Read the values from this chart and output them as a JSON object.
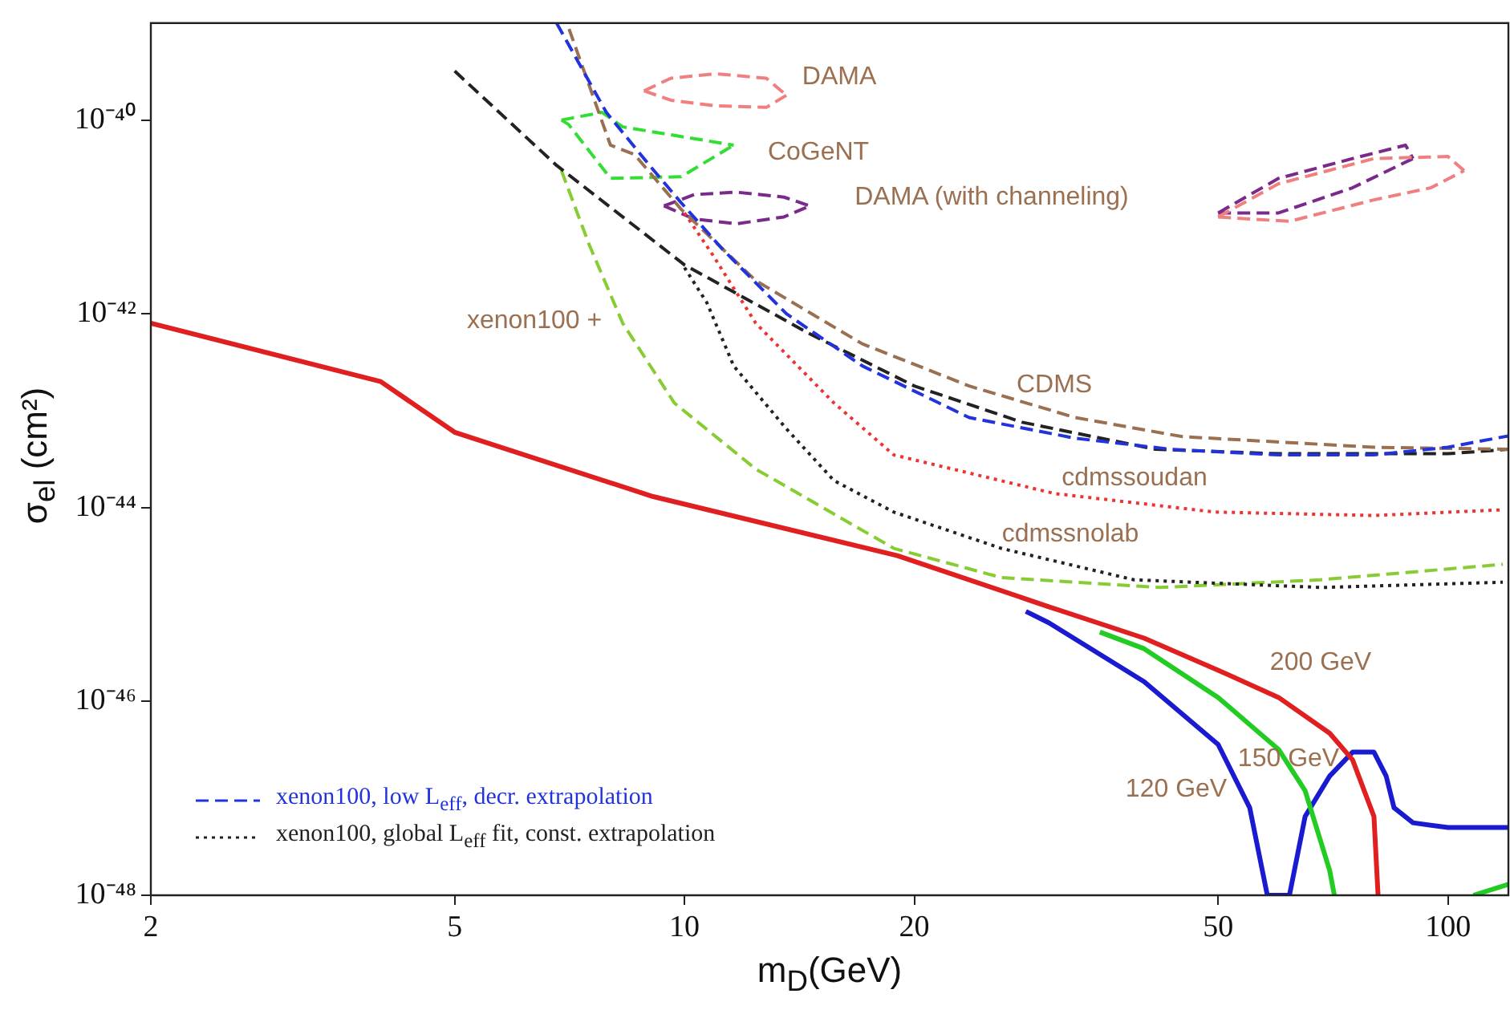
{
  "chart_data": {
    "type": "line",
    "xlabel": "m$_{D}$(GeV)",
    "ylabel": "σ$_{el}$ (cm²)",
    "log": "xy",
    "grid": false,
    "legend": "bottom left",
    "xlim": [
      2,
      120
    ],
    "xticks": [
      2,
      5,
      10,
      20,
      50,
      100
    ],
    "ylim": [
      1e-48,
      1e-39
    ],
    "yticks": [
      {
        "value": 1e-48,
        "label": "10⁻⁴⁸"
      },
      {
        "value": 1e-46,
        "label": "10⁻⁴⁶"
      },
      {
        "value": 1e-44,
        "label": "10⁻⁴⁴"
      },
      {
        "value": 1e-42,
        "label": "10⁻⁴²"
      },
      {
        "value": 1e-40,
        "label": "10⁻⁴⁰"
      }
    ],
    "series": [
      {
        "color": "#e02020",
        "line_style": "solid",
        "x": [
          2,
          4,
          5,
          9.1,
          19,
          30,
          40,
          50,
          60,
          70,
          75,
          80,
          81
        ],
        "values": [
          8e-43,
          2e-43,
          6e-44,
          1.3e-44,
          3.2e-45,
          9.5e-46,
          4.5e-46,
          2.1e-46,
          1.1e-46,
          4.7e-47,
          2.5e-47,
          6.5e-48,
          1e-48
        ]
      },
      {
        "color": "#22cc22",
        "line_style": "solid",
        "x": [
          35,
          40,
          50,
          60,
          65,
          70,
          71,
          90,
          108,
          120
        ],
        "values": [
          5.2e-46,
          3.5e-46,
          1.1e-46,
          3.2e-47,
          1.2e-47,
          1.8e-48,
          1e-48,
          null,
          1e-48,
          1.3e-48
        ]
      },
      {
        "color": "#1a1ad0",
        "line_style": "solid",
        "x": [
          28,
          30,
          40,
          50,
          55,
          58,
          62,
          65,
          70,
          75,
          80,
          83,
          85,
          90,
          100,
          120
        ],
        "values": [
          8.5e-46,
          6.5e-46,
          1.6e-46,
          3.6e-47,
          8e-48,
          1e-48,
          1e-48,
          6.5e-48,
          1.7e-47,
          3e-47,
          3e-47,
          1.7e-47,
          8e-48,
          5.6e-48,
          5e-48,
          5e-48
        ]
      },
      {
        "name": "xenon100, low L$_{eff}$, decr. extrapolation",
        "color": "#2233dd",
        "line_style": "dashed",
        "x": [
          6.8,
          7.9,
          9,
          9.9,
          11.2,
          13.6,
          17.1,
          23.6,
          32.5,
          43.4,
          60,
          80,
          100,
          120
        ],
        "values": [
          1e-39,
          1.2e-40,
          3.4e-41,
          1.4e-41,
          4.7e-42,
          1e-42,
          2.9e-43,
          8.5e-44,
          5.2e-44,
          4e-44,
          3.5e-44,
          3.5e-44,
          4.2e-44,
          5.5e-44
        ]
      },
      {
        "color": "#9a7050",
        "line_style": "dashed",
        "x": [
          7.06,
          8,
          8.6,
          9.9,
          12.4,
          17.1,
          23.6,
          32.5,
          44.9,
          80,
          120
        ],
        "values": [
          8.7e-40,
          5.5e-41,
          4.4e-41,
          1.2e-41,
          2.2e-42,
          4.9e-43,
          1.8e-43,
          8.5e-44,
          5.4e-44,
          4.2e-44,
          4e-44
        ]
      },
      {
        "color": "#222222",
        "line_style": "dashed",
        "x": [
          5,
          6.8,
          10,
          14.6,
          20,
          27.7,
          41.4,
          60,
          100,
          120
        ],
        "values": [
          3.2e-40,
          3.4e-41,
          3.2e-42,
          6.2e-43,
          1.8e-43,
          7.6e-44,
          4e-44,
          3.6e-44,
          3.6e-44,
          4e-44
        ]
      },
      {
        "name": "xenon100, global L$_{eff}$ fit, const. extrapolation",
        "color": "#222222",
        "line_style": "dotted",
        "x": [
          10,
          10.7,
          11.6,
          13.6,
          15.7,
          18.8,
          26,
          38.8,
          68.4,
          118
        ],
        "values": [
          3e-42,
          1.3e-42,
          2.9e-43,
          6.5e-44,
          1.9e-44,
          9e-45,
          3.8e-45,
          1.8e-45,
          1.5e-45,
          1.7e-45
        ]
      },
      {
        "color": "#ee3333",
        "line_style": "dotted",
        "x": [
          10,
          10.9,
          12.4,
          15.7,
          18.8,
          30.5,
          49.5,
          80,
          118
        ],
        "values": [
          1.1e-41,
          4e-42,
          8e-43,
          1.2e-43,
          3.5e-44,
          1.4e-44,
          9e-45,
          8.3e-45,
          9.5e-45
        ]
      },
      {
        "color": "#88cc33",
        "line_style": "dashed",
        "x": [
          6.9,
          7.5,
          8.3,
          9.7,
          12.4,
          18.8,
          26,
          42,
          68,
          118
        ],
        "values": [
          3e-41,
          5.2e-42,
          8e-43,
          1.2e-43,
          2.5e-44,
          3.8e-45,
          1.9e-45,
          1.5e-45,
          1.8e-45,
          2.6e-45
        ]
      },
      {
        "color": "#f08080",
        "line_style": "dashed",
        "x": [
          8.85,
          9.6,
          11,
          12.8,
          13.6
        ],
        "values": [
          2e-40,
          2.7e-40,
          3e-40,
          2.7e-40,
          1.8e-40
        ]
      },
      {
        "color": "#f08080",
        "line_style": "dashed",
        "x": [
          8.85,
          9.6,
          11,
          12.8,
          13.6
        ],
        "values": [
          2e-40,
          1.6e-40,
          1.4e-40,
          1.35e-40,
          1.8e-40
        ]
      },
      {
        "color": "#f08080",
        "line_style": "dashed",
        "x": [
          50,
          60,
          80,
          100,
          105
        ],
        "values": [
          1e-41,
          2.2e-41,
          4e-41,
          4.2e-41,
          3e-41
        ]
      },
      {
        "color": "#f08080",
        "line_style": "dashed",
        "x": [
          50,
          62,
          80,
          95,
          105
        ],
        "values": [
          1e-41,
          9e-42,
          1.5e-41,
          2e-41,
          3e-41
        ]
      },
      {
        "color": "#7a2a8a",
        "line_style": "dashed",
        "x": [
          9.4,
          10.3,
          11.7,
          13.5,
          14.6
        ],
        "values": [
          1.3e-41,
          1.7e-41,
          1.8e-41,
          1.6e-41,
          1.3e-41
        ]
      },
      {
        "color": "#7a2a8a",
        "line_style": "dashed",
        "x": [
          9.4,
          10.3,
          11.7,
          13.5,
          14.6
        ],
        "values": [
          1.3e-41,
          9.5e-42,
          8.5e-42,
          1e-41,
          1.3e-41
        ]
      },
      {
        "color": "#7a2a8a",
        "line_style": "dashed",
        "x": [
          50,
          60,
          75,
          88,
          90
        ],
        "values": [
          1.1e-41,
          2.5e-41,
          4e-41,
          5.5e-41,
          4e-41
        ]
      },
      {
        "color": "#7a2a8a",
        "line_style": "dashed",
        "x": [
          50,
          60,
          75,
          90
        ],
        "values": [
          1.1e-41,
          1.1e-41,
          2e-41,
          4e-41
        ]
      },
      {
        "color": "#33dd33",
        "line_style": "dashed",
        "x": [
          6.9,
          7.8,
          8.3,
          11.6
        ],
        "values": [
          1e-40,
          1.2e-40,
          8.5e-41,
          5.5e-41
        ]
      },
      {
        "color": "#33dd33",
        "line_style": "dashed",
        "x": [
          6.9,
          7.05,
          8,
          9.9,
          11.6
        ],
        "values": [
          1e-40,
          9e-41,
          2.5e-41,
          2.6e-41,
          5.5e-41
        ]
      }
    ],
    "annotations": [
      "DAMA",
      "CoGeNT",
      "DAMA (with channeling)",
      "xenon100 +",
      "CDMS",
      "cdmssoudan",
      "cdmssnolab",
      "200 GeV",
      "150 GeV",
      "120 GeV"
    ]
  }
}
